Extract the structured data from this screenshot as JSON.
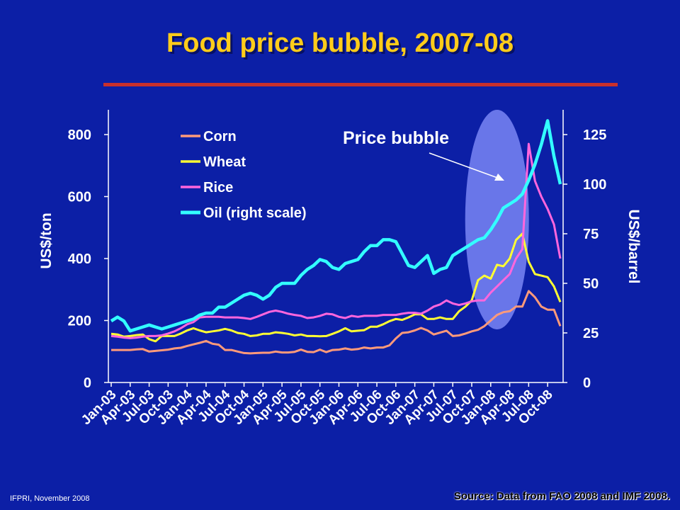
{
  "title": "Food price bubble, 2007-08",
  "footer": "IFPRI, November 2008",
  "source": "Source: Data from FAO 2008 and IMF 2008.",
  "annotation": "Price bubble",
  "colors": {
    "background": "#0c1fa6",
    "title": "#ffcc1a",
    "corn": "#ff9a7a",
    "wheat": "#ffff33",
    "rice": "#ff66dd",
    "oil": "#33ffff",
    "bubble": "#7a86f5",
    "rule": "#c9302c"
  },
  "chart_data": {
    "type": "line",
    "ylabel": "US$/ton",
    "y2label": "US$/barrel",
    "ylim": [
      0,
      880
    ],
    "y2lim": [
      0,
      137.5
    ],
    "yticks": [
      0,
      200,
      400,
      600,
      800
    ],
    "y2ticks": [
      0,
      25,
      50,
      75,
      100,
      125
    ],
    "x_tick_labels": [
      "Jan-03",
      "Apr-03",
      "Jul-03",
      "Oct-03",
      "Jan-04",
      "Apr-04",
      "Jul-04",
      "Oct-04",
      "Jan-05",
      "Apr-05",
      "Jul-05",
      "Oct-05",
      "Jan-06",
      "Apr-06",
      "Jul-06",
      "Oct-06",
      "Jan-07",
      "Apr-07",
      "Jul-07",
      "Oct-07",
      "Jan-08",
      "Apr-08",
      "Jul-08",
      "Oct-08"
    ],
    "legend_position": "top-left",
    "series": [
      {
        "name": "Corn",
        "axis": "left",
        "values": [
          105,
          105,
          105,
          105,
          107,
          108,
          100,
          102,
          104,
          106,
          110,
          112,
          118,
          123,
          128,
          134,
          125,
          122,
          105,
          105,
          100,
          95,
          94,
          95,
          96,
          96,
          100,
          97,
          97,
          99,
          106,
          99,
          98,
          106,
          98,
          105,
          106,
          110,
          106,
          108,
          113,
          110,
          113,
          113,
          120,
          142,
          160,
          162,
          168,
          176,
          168,
          155,
          161,
          167,
          150,
          152,
          158,
          165,
          170,
          182,
          200,
          218,
          227,
          230,
          245,
          245,
          295,
          275,
          245,
          235,
          235,
          182
        ]
      },
      {
        "name": "Wheat",
        "axis": "left",
        "values": [
          157,
          155,
          148,
          150,
          153,
          155,
          140,
          133,
          150,
          150,
          150,
          158,
          168,
          175,
          168,
          162,
          165,
          168,
          173,
          168,
          160,
          157,
          150,
          152,
          157,
          157,
          162,
          160,
          157,
          152,
          155,
          150,
          150,
          149,
          150,
          157,
          165,
          175,
          165,
          167,
          169,
          180,
          180,
          188,
          198,
          205,
          202,
          210,
          220,
          220,
          205,
          205,
          210,
          205,
          205,
          230,
          245,
          265,
          330,
          345,
          335,
          380,
          375,
          400,
          460,
          480,
          390,
          350,
          345,
          340,
          310,
          260
        ]
      },
      {
        "name": "Rice",
        "axis": "left",
        "values": [
          150,
          148,
          145,
          143,
          145,
          148,
          150,
          150,
          152,
          158,
          165,
          175,
          188,
          195,
          210,
          212,
          212,
          212,
          210,
          210,
          210,
          208,
          205,
          212,
          220,
          228,
          232,
          228,
          222,
          218,
          215,
          208,
          210,
          215,
          222,
          220,
          212,
          208,
          215,
          212,
          215,
          215,
          215,
          218,
          218,
          218,
          222,
          225,
          225,
          222,
          232,
          245,
          252,
          265,
          255,
          250,
          255,
          262,
          265,
          265,
          290,
          310,
          330,
          350,
          400,
          430,
          770,
          650,
          600,
          560,
          510,
          400
        ]
      },
      {
        "name": "Oil (right scale)",
        "axis": "right",
        "values": [
          31,
          33,
          31,
          26,
          27,
          28,
          29,
          28,
          27,
          28,
          29,
          30,
          31,
          32,
          34,
          35,
          35,
          38,
          38,
          40,
          42,
          44,
          45,
          44,
          42,
          44,
          48,
          50,
          50,
          50,
          54,
          57,
          59,
          62,
          61,
          58,
          57,
          60,
          61,
          62,
          66,
          69,
          69,
          72,
          72,
          71,
          65,
          59,
          58,
          61,
          64,
          55,
          57,
          58,
          64,
          66,
          68,
          70,
          72,
          73,
          77,
          82,
          88,
          90,
          92,
          95,
          102,
          110,
          120,
          132,
          114,
          100
        ]
      }
    ]
  }
}
